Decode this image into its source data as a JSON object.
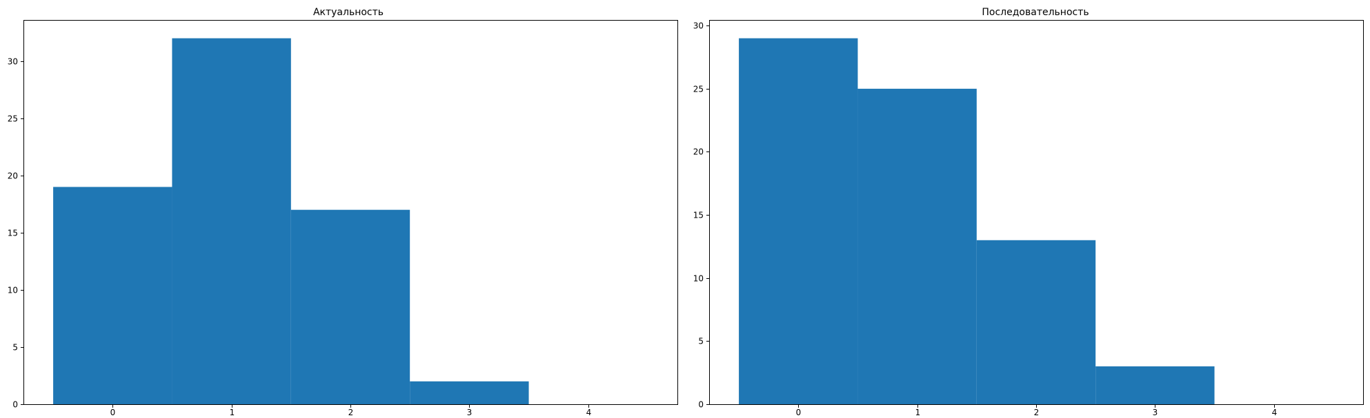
{
  "figure": {
    "background": "#ffffff"
  },
  "chart_data": [
    {
      "type": "bar",
      "title": "Актуальность",
      "xlabel": "",
      "ylabel": "",
      "categories": [
        0,
        1,
        2,
        3,
        4
      ],
      "values": [
        19,
        32,
        17,
        2,
        0
      ],
      "bar_width": 1.0,
      "xlim": [
        -0.75,
        4.75
      ],
      "ylim": [
        0,
        33.6
      ],
      "xticks": [
        0,
        1,
        2,
        3,
        4
      ],
      "yticks": [
        0,
        5,
        10,
        15,
        20,
        25,
        30
      ],
      "color": "#1f77b4",
      "grid": false,
      "legend": false
    },
    {
      "type": "bar",
      "title": "Последовательность",
      "xlabel": "",
      "ylabel": "",
      "categories": [
        0,
        1,
        2,
        3,
        4
      ],
      "values": [
        29,
        25,
        13,
        3,
        0
      ],
      "bar_width": 1.0,
      "xlim": [
        -0.75,
        4.75
      ],
      "ylim": [
        0,
        30.45
      ],
      "xticks": [
        0,
        1,
        2,
        3,
        4
      ],
      "yticks": [
        0,
        5,
        10,
        15,
        20,
        25,
        30
      ],
      "color": "#1f77b4",
      "grid": false,
      "legend": false
    }
  ]
}
